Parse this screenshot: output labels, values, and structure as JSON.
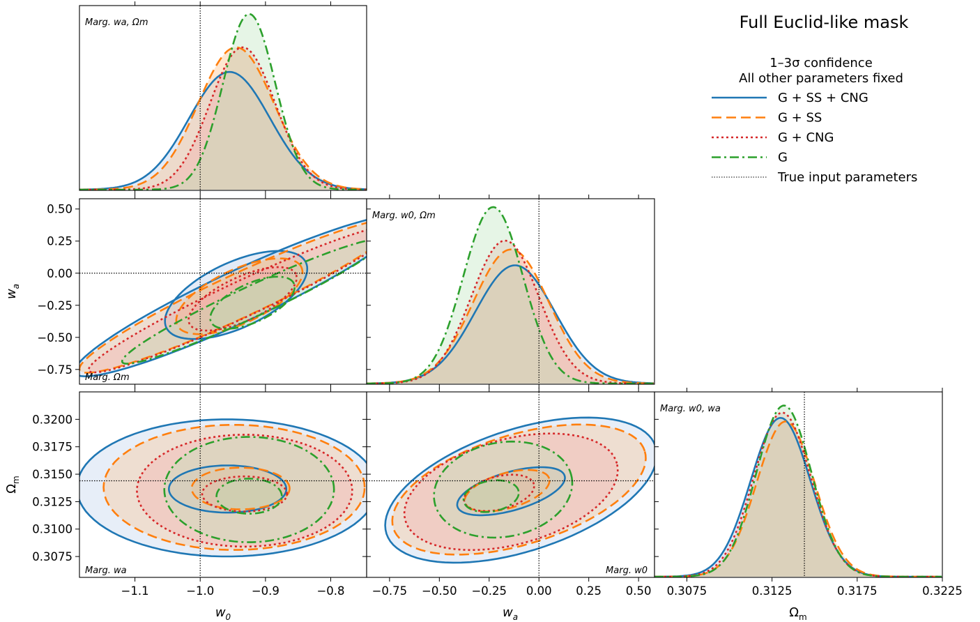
{
  "title": "Full Euclid-like mask",
  "legend": {
    "header_line1": "1–3σ confidence",
    "header_line2": "All other parameters fixed",
    "entries": [
      {
        "label": "G + SS + CNG",
        "color": "#1f77b4",
        "style": "solid"
      },
      {
        "label": "G + SS",
        "color": "#ff7f0e",
        "style": "dashed"
      },
      {
        "label": "G + CNG",
        "color": "#d62728",
        "style": "dotted"
      },
      {
        "label": "G",
        "color": "#2ca02c",
        "style": "dashdot"
      },
      {
        "label": "True input parameters",
        "color": "#000000",
        "style": "finedot"
      }
    ]
  },
  "annotations": {
    "w0_1d": "Marg. wa, Ωm",
    "wa_1d": "Marg. w0, Ωm",
    "om_1d": "Marg. w0, wa",
    "w0_wa": "Marg. Ωm",
    "w0_om": "Marg. wa",
    "wa_om": "Marg. w0"
  },
  "axes": {
    "w0": {
      "label": "w0",
      "range": [
        -1.185,
        -0.745
      ],
      "ticks": [
        -1.1,
        -1.0,
        -0.9,
        -0.8
      ],
      "tick_labels": [
        "−1.1",
        "−1.0",
        "−0.9",
        "−0.8"
      ],
      "true": -1.0
    },
    "wa": {
      "label": "wa",
      "range": [
        -0.865,
        0.58
      ],
      "ticks": [
        -0.75,
        -0.5,
        -0.25,
        0.0,
        0.25,
        0.5
      ],
      "tick_labels": [
        "−0.75",
        "−0.50",
        "−0.25",
        "0.00",
        "0.25",
        "0.50"
      ],
      "true": 0.0
    },
    "om": {
      "label": "Ωm",
      "range": [
        0.3056,
        0.3225
      ],
      "ticks": [
        0.3075,
        0.31,
        0.3125,
        0.315,
        0.3175,
        0.32
      ],
      "tick_labels": [
        "0.3075",
        "0.3100",
        "0.3125",
        "0.3150",
        "0.3175",
        "0.3200"
      ],
      "true": 0.3144
    },
    "om_bottom": {
      "ticks": [
        0.3075,
        0.3125,
        0.3175,
        0.3225
      ],
      "tick_labels": [
        "0.3075",
        "0.3125",
        "0.3175",
        "0.3225"
      ]
    }
  },
  "chart_data": {
    "type": "corner",
    "parameters": [
      "w0",
      "wa",
      "Ωm"
    ],
    "true_values": {
      "w0": -1.0,
      "wa": 0.0,
      "Ωm": 0.3144
    },
    "series": [
      {
        "name": "G + SS + CNG",
        "color": "#1f77b4",
        "fill": "#aec7e8",
        "marginals": {
          "w0": {
            "mean": -0.955,
            "sigma": 0.062,
            "peak": 0.67
          },
          "wa": {
            "mean": -0.12,
            "sigma": 0.2,
            "peak": 0.67
          },
          "Ωm": {
            "mean": 0.313,
            "sigma": 0.00175,
            "peak": 0.9
          }
        },
        "contours": {
          "w0_wa": [
            {
              "center": [
                -0.938,
                -0.175
              ],
              "semi_axes": [
                0.28,
                0.2
              ],
              "angle": -25
            },
            {
              "center": [
                -0.945,
                -0.17
              ],
              "semi_axes": [
                0.118,
                0.255
              ],
              "angle": -25
            }
          ],
          "w0_Ωm": [
            {
              "center": [
                -0.959,
                0.31375
              ],
              "semi_axes": [
                0.23,
                0.00625
              ]
            },
            {
              "center": [
                -0.958,
                0.31365
              ],
              "semi_axes": [
                0.09,
                0.00215
              ]
            }
          ],
          "wa_Ωm": [
            {
              "center": [
                -0.09,
                0.31355
              ],
              "semi_axes": [
                0.71,
                0.00555
              ],
              "angle": -18
            },
            {
              "center": [
                -0.14,
                0.31345
              ],
              "semi_axes": [
                0.28,
                0.00175
              ],
              "angle": -16
            }
          ]
        }
      },
      {
        "name": "G + SS",
        "color": "#ff7f0e",
        "fill": "#ffbb78",
        "marginals": {
          "w0": {
            "mean": -0.945,
            "sigma": 0.058,
            "peak": 0.81
          },
          "wa": {
            "mean": -0.14,
            "sigma": 0.19,
            "peak": 0.76
          },
          "Ωm": {
            "mean": 0.3133,
            "sigma": 0.0017,
            "peak": 0.88
          }
        },
        "contours": {
          "w0_wa": [
            {
              "center": [
                -0.94,
                -0.175
              ],
              "semi_axes": [
                0.27,
                0.17
              ],
              "angle": -25
            },
            {
              "center": [
                -0.94,
                -0.18
              ],
              "semi_axes": [
                0.105,
                0.21
              ],
              "angle": -25
            }
          ],
          "w0_Ωm": [
            {
              "center": [
                -0.948,
                0.3138
              ],
              "semi_axes": [
                0.2,
                0.0057
              ]
            },
            {
              "center": [
                -0.938,
                0.3137
              ],
              "semi_axes": [
                0.075,
                0.0019
              ]
            }
          ],
          "wa_Ωm": [
            {
              "center": [
                -0.1,
                0.3136
              ],
              "semi_axes": [
                0.66,
                0.005
              ],
              "angle": -17
            },
            {
              "center": [
                -0.16,
                0.3135
              ],
              "semi_axes": [
                0.22,
                0.0016
              ],
              "angle": -16
            }
          ]
        }
      },
      {
        "name": "G + CNG",
        "color": "#d62728",
        "fill": "#f4a6a6",
        "marginals": {
          "w0": {
            "mean": -0.935,
            "sigma": 0.05,
            "peak": 0.81
          },
          "wa": {
            "mean": -0.17,
            "sigma": 0.17,
            "peak": 0.81
          },
          "Ωm": {
            "mean": 0.3131,
            "sigma": 0.00168,
            "peak": 0.93
          }
        },
        "contours": {
          "w0_wa": [
            {
              "center": [
                -0.935,
                -0.2
              ],
              "semi_axes": [
                0.26,
                0.14
              ],
              "angle": -25
            },
            {
              "center": [
                -0.935,
                -0.2
              ],
              "semi_axes": [
                0.09,
                0.17
              ],
              "angle": -25
            }
          ],
          "w0_Ωm": [
            {
              "center": [
                -0.932,
                0.3135
              ],
              "semi_axes": [
                0.165,
                0.0051
              ]
            },
            {
              "center": [
                -0.932,
                0.3132
              ],
              "semi_axes": [
                0.065,
                0.0016
              ]
            }
          ],
          "wa_Ωm": [
            {
              "center": [
                -0.14,
                0.3134
              ],
              "semi_axes": [
                0.55,
                0.0048
              ],
              "angle": -15
            },
            {
              "center": [
                -0.2,
                0.3133
              ],
              "semi_axes": [
                0.18,
                0.0015
              ],
              "angle": -14
            }
          ]
        }
      },
      {
        "name": "G",
        "color": "#2ca02c",
        "fill": "#b6e3b6",
        "marginals": {
          "w0": {
            "mean": -0.925,
            "sigma": 0.04,
            "peak": 1.0
          },
          "wa": {
            "mean": -0.23,
            "sigma": 0.15,
            "peak": 1.0
          },
          "Ωm": {
            "mean": 0.3132,
            "sigma": 0.00162,
            "peak": 0.97
          }
        },
        "contours": {
          "w0_wa": [
            {
              "center": [
                -0.92,
                -0.22
              ],
              "semi_axes": [
                0.22,
                0.12
              ],
              "angle": -25
            },
            {
              "center": [
                -0.92,
                -0.23
              ],
              "semi_axes": [
                0.07,
                0.15
              ],
              "angle": -25
            }
          ],
          "w0_Ωm": [
            {
              "center": [
                -0.925,
                0.3136
              ],
              "semi_axes": [
                0.13,
                0.0048
              ]
            },
            {
              "center": [
                -0.925,
                0.313
              ],
              "semi_axes": [
                0.05,
                0.0016
              ]
            }
          ],
          "wa_Ωm": [
            {
              "center": [
                -0.18,
                0.3136
              ],
              "semi_axes": [
                0.35,
                0.0043
              ],
              "angle": -10
            },
            {
              "center": [
                -0.24,
                0.313
              ],
              "semi_axes": [
                0.14,
                0.0014
              ],
              "angle": -10
            }
          ]
        }
      }
    ]
  }
}
